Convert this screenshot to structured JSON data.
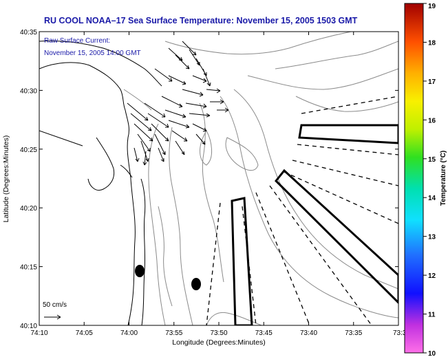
{
  "title": "RU COOL  NOAA–17  Sea Surface Temperature:  November 15, 2005 1503 GMT",
  "annotation": {
    "line1": "Raw Surface Current:",
    "line2": "November 15, 2005 14:00 GMT"
  },
  "scale": {
    "label": "50 cm/s"
  },
  "axes": {
    "xlabel": "Longitude (Degrees:Minutes)",
    "ylabel": "Latitude (Degrees:Minutes)",
    "xticks": [
      "74:10",
      "74:05",
      "74:00",
      "73:55",
      "73:50",
      "73:45",
      "73:40",
      "73:35",
      "73:3"
    ],
    "yticks": [
      "40:35",
      "40:30",
      "40:25",
      "40:20",
      "40:15",
      "40:10"
    ]
  },
  "colorbar": {
    "label": "Temperature (°C)",
    "ticks": [
      "19",
      "18",
      "17",
      "16",
      "15",
      "14",
      "13",
      "12",
      "11",
      "10"
    ],
    "min": 10,
    "max": 19
  },
  "colors": {
    "title": "#1a1aa8",
    "annotation": "#1a1aa8"
  }
}
